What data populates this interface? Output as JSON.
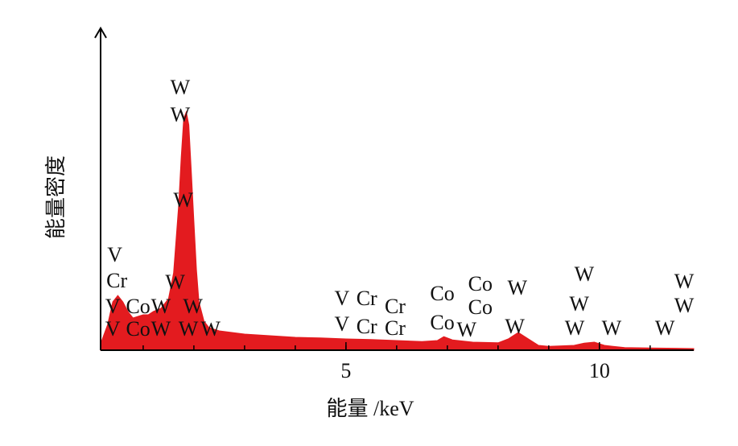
{
  "chart_data": {
    "type": "area",
    "x_label": "能量 /keV",
    "y_label": "能量密度",
    "color": "#e31b1f",
    "xlim": [
      0.16,
      11.86
    ],
    "ylim": [
      0,
      100
    ],
    "xticks": [
      5,
      10
    ],
    "xminor_ticks": [
      1,
      2,
      3,
      4,
      5,
      6,
      7,
      8,
      9,
      10,
      11
    ],
    "x": [
      0.16,
      0.3,
      0.4,
      0.5,
      0.6,
      0.7,
      0.8,
      0.9,
      1.0,
      1.1,
      1.2,
      1.35,
      1.5,
      1.6,
      1.7,
      1.75,
      1.8,
      1.85,
      1.9,
      1.95,
      2.0,
      2.05,
      2.1,
      2.2,
      2.3,
      2.5,
      3,
      3.5,
      4,
      4.5,
      5,
      5.5,
      6,
      6.5,
      6.8,
      6.93,
      7.1,
      7.5,
      8,
      8.2,
      8.4,
      8.6,
      8.8,
      9,
      9.5,
      9.7,
      9.9,
      10.1,
      10.5,
      11,
      11.5,
      11.86
    ],
    "values": [
      2,
      8,
      15,
      17,
      15,
      12,
      10,
      10.5,
      11,
      11,
      12,
      13,
      16,
      24,
      45,
      60,
      72,
      74,
      70,
      55,
      40,
      25,
      15,
      9,
      7,
      6,
      5,
      4.5,
      4,
      3.8,
      3.5,
      3.3,
      3,
      2.7,
      3,
      4.2,
      3.2,
      2.5,
      2.3,
      3.5,
      5.5,
      3.5,
      1.5,
      1.2,
      1.5,
      2.2,
      2.5,
      1.5,
      0.8,
      0.7,
      0.6,
      0.5
    ],
    "annotations": [
      {
        "text": "W",
        "x": 1.73,
        "y": 81
      },
      {
        "text": "W",
        "x": 1.73,
        "y": 72.5
      },
      {
        "text": "W",
        "x": 1.79,
        "y": 46
      },
      {
        "text": "V",
        "x": 0.44,
        "y": 29
      },
      {
        "text": "Cr",
        "x": 0.48,
        "y": 21
      },
      {
        "text": "V",
        "x": 0.4,
        "y": 13
      },
      {
        "text": "Co",
        "x": 0.9,
        "y": 13
      },
      {
        "text": "W",
        "x": 1.35,
        "y": 13
      },
      {
        "text": "V",
        "x": 0.4,
        "y": 6
      },
      {
        "text": "Co",
        "x": 0.9,
        "y": 6
      },
      {
        "text": "W",
        "x": 1.35,
        "y": 6
      },
      {
        "text": "W",
        "x": 1.63,
        "y": 20.5
      },
      {
        "text": "W",
        "x": 1.98,
        "y": 13
      },
      {
        "text": "W",
        "x": 1.89,
        "y": 6
      },
      {
        "text": "W",
        "x": 2.33,
        "y": 6
      },
      {
        "text": "V",
        "x": 4.92,
        "y": 15.5
      },
      {
        "text": "Cr",
        "x": 5.41,
        "y": 15.5
      },
      {
        "text": "Cr",
        "x": 5.97,
        "y": 13
      },
      {
        "text": "V",
        "x": 4.92,
        "y": 7.5
      },
      {
        "text": "Cr",
        "x": 5.41,
        "y": 6.75
      },
      {
        "text": "Cr",
        "x": 5.97,
        "y": 6.25
      },
      {
        "text": "Co",
        "x": 6.9,
        "y": 17
      },
      {
        "text": "Co",
        "x": 7.65,
        "y": 20
      },
      {
        "text": "Co",
        "x": 7.65,
        "y": 12.75
      },
      {
        "text": "W",
        "x": 8.38,
        "y": 18.75
      },
      {
        "text": "Co",
        "x": 6.9,
        "y": 8
      },
      {
        "text": "W",
        "x": 7.38,
        "y": 5.75
      },
      {
        "text": "W",
        "x": 8.33,
        "y": 6.75
      },
      {
        "text": "W",
        "x": 9.7,
        "y": 23
      },
      {
        "text": "W",
        "x": 9.6,
        "y": 13.75
      },
      {
        "text": "W",
        "x": 9.51,
        "y": 6.25
      },
      {
        "text": "W",
        "x": 10.24,
        "y": 6.25
      },
      {
        "text": "W",
        "x": 11.67,
        "y": 20.75
      },
      {
        "text": "W",
        "x": 11.67,
        "y": 13.25
      },
      {
        "text": "W",
        "x": 11.29,
        "y": 6.25
      }
    ]
  }
}
